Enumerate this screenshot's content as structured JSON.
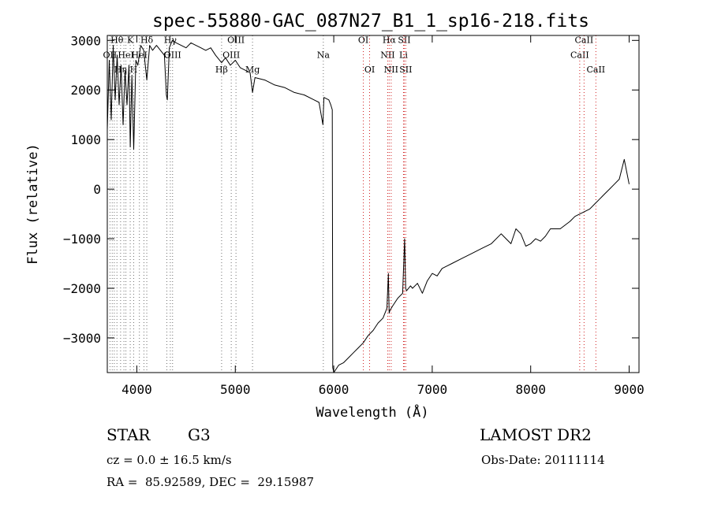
{
  "chart_data": {
    "type": "line",
    "title": "spec-55880-GAC_087N27_B1_1_sp16-218.fits",
    "xlabel": "Wavelength (Å)",
    "ylabel": "Flux (relative)",
    "xlim": [
      3700,
      9100
    ],
    "ylim": [
      -3700,
      3100
    ],
    "xticks": [
      4000,
      5000,
      6000,
      7000,
      8000,
      9000
    ],
    "yticks": [
      -3000,
      -2000,
      -1000,
      0,
      1000,
      2000,
      3000
    ],
    "xtick_labels": [
      "4000",
      "5000",
      "6000",
      "7000",
      "8000",
      "9000"
    ],
    "ytick_labels": [
      "−3000",
      "−2000",
      "−1000",
      "0",
      "1000",
      "2000",
      "3000"
    ],
    "grid": false,
    "series": [
      {
        "x": [
          3700,
          3720,
          3740,
          3760,
          3780,
          3800,
          3820,
          3840,
          3860,
          3880,
          3900,
          3920,
          3933,
          3950,
          3968,
          3990,
          4010,
          4040,
          4070,
          4101,
          4130,
          4160,
          4200,
          4240,
          4280,
          4300,
          4310,
          4330,
          4340,
          4360,
          4400,
          4450,
          4500,
          4550,
          4600,
          4650,
          4700,
          4750,
          4800,
          4861,
          4900,
          4950,
          5000,
          5050,
          5100,
          5150,
          5175,
          5200,
          5300,
          5400,
          5500,
          5600,
          5700,
          5800,
          5850,
          5890,
          5900,
          5950,
          5970,
          5985,
          5990,
          6000,
          6050,
          6100,
          6150,
          6200,
          6250,
          6300,
          6350,
          6400,
          6450,
          6500,
          6540,
          6555,
          6563,
          6570,
          6600,
          6650,
          6700,
          6720,
          6730,
          6740,
          6780,
          6800,
          6850,
          6900,
          6950,
          7000,
          7050,
          7100,
          7150,
          7200,
          7300,
          7400,
          7500,
          7600,
          7700,
          7750,
          7800,
          7850,
          7900,
          7950,
          8000,
          8050,
          8100,
          8150,
          8200,
          8300,
          8400,
          8450,
          8500,
          8550,
          8600,
          8650,
          8700,
          8750,
          8800,
          8850,
          8900,
          8950,
          9000
        ],
        "y": [
          1200,
          2600,
          1400,
          2900,
          1800,
          2700,
          1700,
          2500,
          1300,
          2400,
          1700,
          2500,
          850,
          2300,
          800,
          2600,
          2500,
          2900,
          2800,
          2200,
          2900,
          2800,
          2900,
          2800,
          2700,
          1900,
          1800,
          2850,
          2900,
          3000,
          2950,
          2900,
          2850,
          2950,
          2900,
          2850,
          2800,
          2850,
          2700,
          2550,
          2650,
          2500,
          2600,
          2450,
          2400,
          2350,
          1950,
          2250,
          2200,
          2100,
          2050,
          1950,
          1900,
          1800,
          1750,
          1300,
          1850,
          1800,
          1700,
          1600,
          -3600,
          -3700,
          -3550,
          -3500,
          -3400,
          -3300,
          -3200,
          -3100,
          -2950,
          -2850,
          -2700,
          -2600,
          -2400,
          -1700,
          -2500,
          -2450,
          -2350,
          -2200,
          -2100,
          -1000,
          -2000,
          -2050,
          -1950,
          -2000,
          -1900,
          -2100,
          -1850,
          -1700,
          -1750,
          -1600,
          -1550,
          -1500,
          -1400,
          -1300,
          -1200,
          -1100,
          -900,
          -1000,
          -1100,
          -800,
          -900,
          -1150,
          -1100,
          -1000,
          -1050,
          -950,
          -800,
          -800,
          -650,
          -550,
          -500,
          -450,
          -400,
          -300,
          -200,
          -100,
          0,
          100,
          200,
          600,
          100
        ],
        "color": "#000000"
      }
    ],
    "line_marks": [
      {
        "x": 3727,
        "label": "OII",
        "label_y": 2650
      },
      {
        "x": 3750,
        "label": "",
        "label_y": 2650
      },
      {
        "x": 3771,
        "label": "",
        "label_y": 2650
      },
      {
        "x": 3798,
        "label": "Hθ",
        "label_y": 2950
      },
      {
        "x": 3835,
        "label": "Hη",
        "label_y": 2350
      },
      {
        "x": 3869,
        "label": "",
        "label_y": 2650
      },
      {
        "x": 3889,
        "label": "HeI",
        "label_y": 2650
      },
      {
        "x": 3933,
        "label": "K",
        "label_y": 2950
      },
      {
        "x": 3968,
        "label": "H",
        "label_y": 2350
      },
      {
        "x": 4026,
        "label": "HeI",
        "label_y": 2650
      },
      {
        "x": 4072,
        "label": "",
        "label_y": 2650
      },
      {
        "x": 4101,
        "label": "Hδ",
        "label_y": 2950
      },
      {
        "x": 4305,
        "label": "G",
        "label_y": 2650
      },
      {
        "x": 4340,
        "label": "Hγ",
        "label_y": 2950
      },
      {
        "x": 4363,
        "label": "OIII",
        "label_y": 2650
      },
      {
        "x": 4861,
        "label": "Hβ",
        "label_y": 2350
      },
      {
        "x": 4959,
        "label": "OIII",
        "label_y": 2650
      },
      {
        "x": 5007,
        "label": "OIII",
        "label_y": 2950
      },
      {
        "x": 5175,
        "label": "Mg",
        "label_y": 2350
      },
      {
        "x": 5894,
        "label": "Na",
        "label_y": 2650
      },
      {
        "x": 6300,
        "label": "OI",
        "label_y": 2950
      },
      {
        "x": 6364,
        "label": "OI",
        "label_y": 2350
      },
      {
        "x": 6548,
        "label": "NII",
        "label_y": 2650
      },
      {
        "x": 6563,
        "label": "Hα",
        "label_y": 2950
      },
      {
        "x": 6583,
        "label": "NII",
        "label_y": 2350
      },
      {
        "x": 6708,
        "label": "Li",
        "label_y": 2650
      },
      {
        "x": 6716,
        "label": "SII",
        "label_y": 2950
      },
      {
        "x": 6731,
        "label": "SII",
        "label_y": 2350
      },
      {
        "x": 8498,
        "label": "CaII",
        "label_y": 2650
      },
      {
        "x": 8542,
        "label": "CaII",
        "label_y": 2950
      },
      {
        "x": 8662,
        "label": "CaII",
        "label_y": 2350
      }
    ],
    "colors": {
      "spectrum": "#000000",
      "red_marks": "#d02020",
      "grey_marks": "#707070"
    }
  },
  "footer": {
    "obj_type": "STAR",
    "obj_class": "G3",
    "survey": "LAMOST DR2",
    "cz": "cz = 0.0 ± 16.5 km/s",
    "obs_date": "Obs-Date: 20111114",
    "radec": "RA =  85.92589, DEC =  29.15987"
  }
}
